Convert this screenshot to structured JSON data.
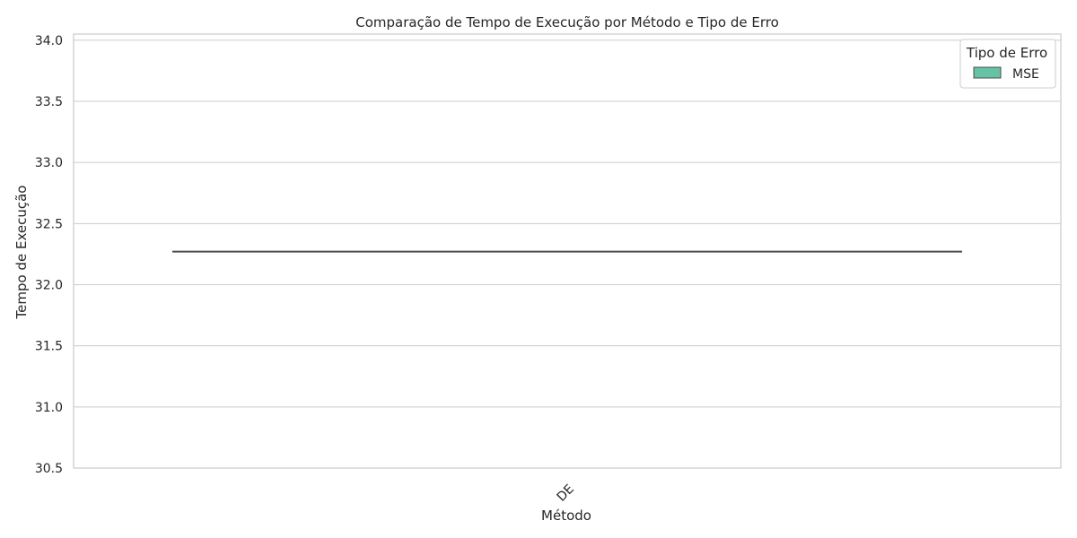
{
  "chart_data": {
    "type": "box",
    "title": "Comparação de Tempo de Execução por Método e Tipo de Erro",
    "xlabel": "Método",
    "ylabel": "Tempo de Execução",
    "categories": [
      "DE"
    ],
    "series": [
      {
        "name": "MSE",
        "color": "#66c2a5",
        "boxes": [
          {
            "category": "DE",
            "min": 32.27,
            "q1": 32.27,
            "median": 32.27,
            "q3": 32.27,
            "max": 32.27
          }
        ]
      }
    ],
    "ylim": [
      30.5,
      34.05
    ],
    "yticks": [
      "30.5",
      "31.0",
      "31.5",
      "32.0",
      "32.5",
      "33.0",
      "33.5",
      "34.0"
    ],
    "xtick_rotation": 45,
    "grid": true,
    "legend": {
      "title": "Tipo de Erro",
      "placement": "top-right"
    }
  }
}
